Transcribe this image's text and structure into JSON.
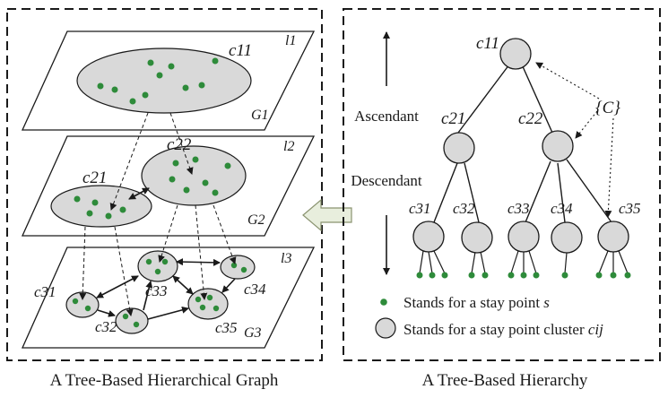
{
  "left_panel": {
    "caption": "A Tree-Based Hierarchical Graph",
    "layers": [
      {
        "layer_label": "l1",
        "graph_label": "G1",
        "clusters": [
          "c11"
        ]
      },
      {
        "layer_label": "l2",
        "graph_label": "G2",
        "clusters": [
          "c21",
          "c22"
        ]
      },
      {
        "layer_label": "l3",
        "graph_label": "G3",
        "clusters": [
          "c31",
          "c32",
          "c33",
          "c34",
          "c35"
        ]
      }
    ]
  },
  "right_panel": {
    "caption": "A Tree-Based Hierarchy",
    "ascendant_label": "Ascendant",
    "descendant_label": "Descendant",
    "set_label": "{C}",
    "nodes": {
      "c11": "c11",
      "c21": "c21",
      "c22": "c22",
      "c31": "c31",
      "c32": "c32",
      "c33": "c33",
      "c34": "c34",
      "c35": "c35"
    },
    "legend": {
      "stay_point_text": "Stands for a stay point ",
      "stay_point_var": "s",
      "cluster_text": "Stands for a stay point cluster ",
      "cluster_var": "cij"
    }
  },
  "colors": {
    "stay_point": "#2e8b3a",
    "cluster_fill": "#d9d9d9",
    "stroke": "#1a1a1a",
    "arrow_fill": "#e8eedd"
  }
}
